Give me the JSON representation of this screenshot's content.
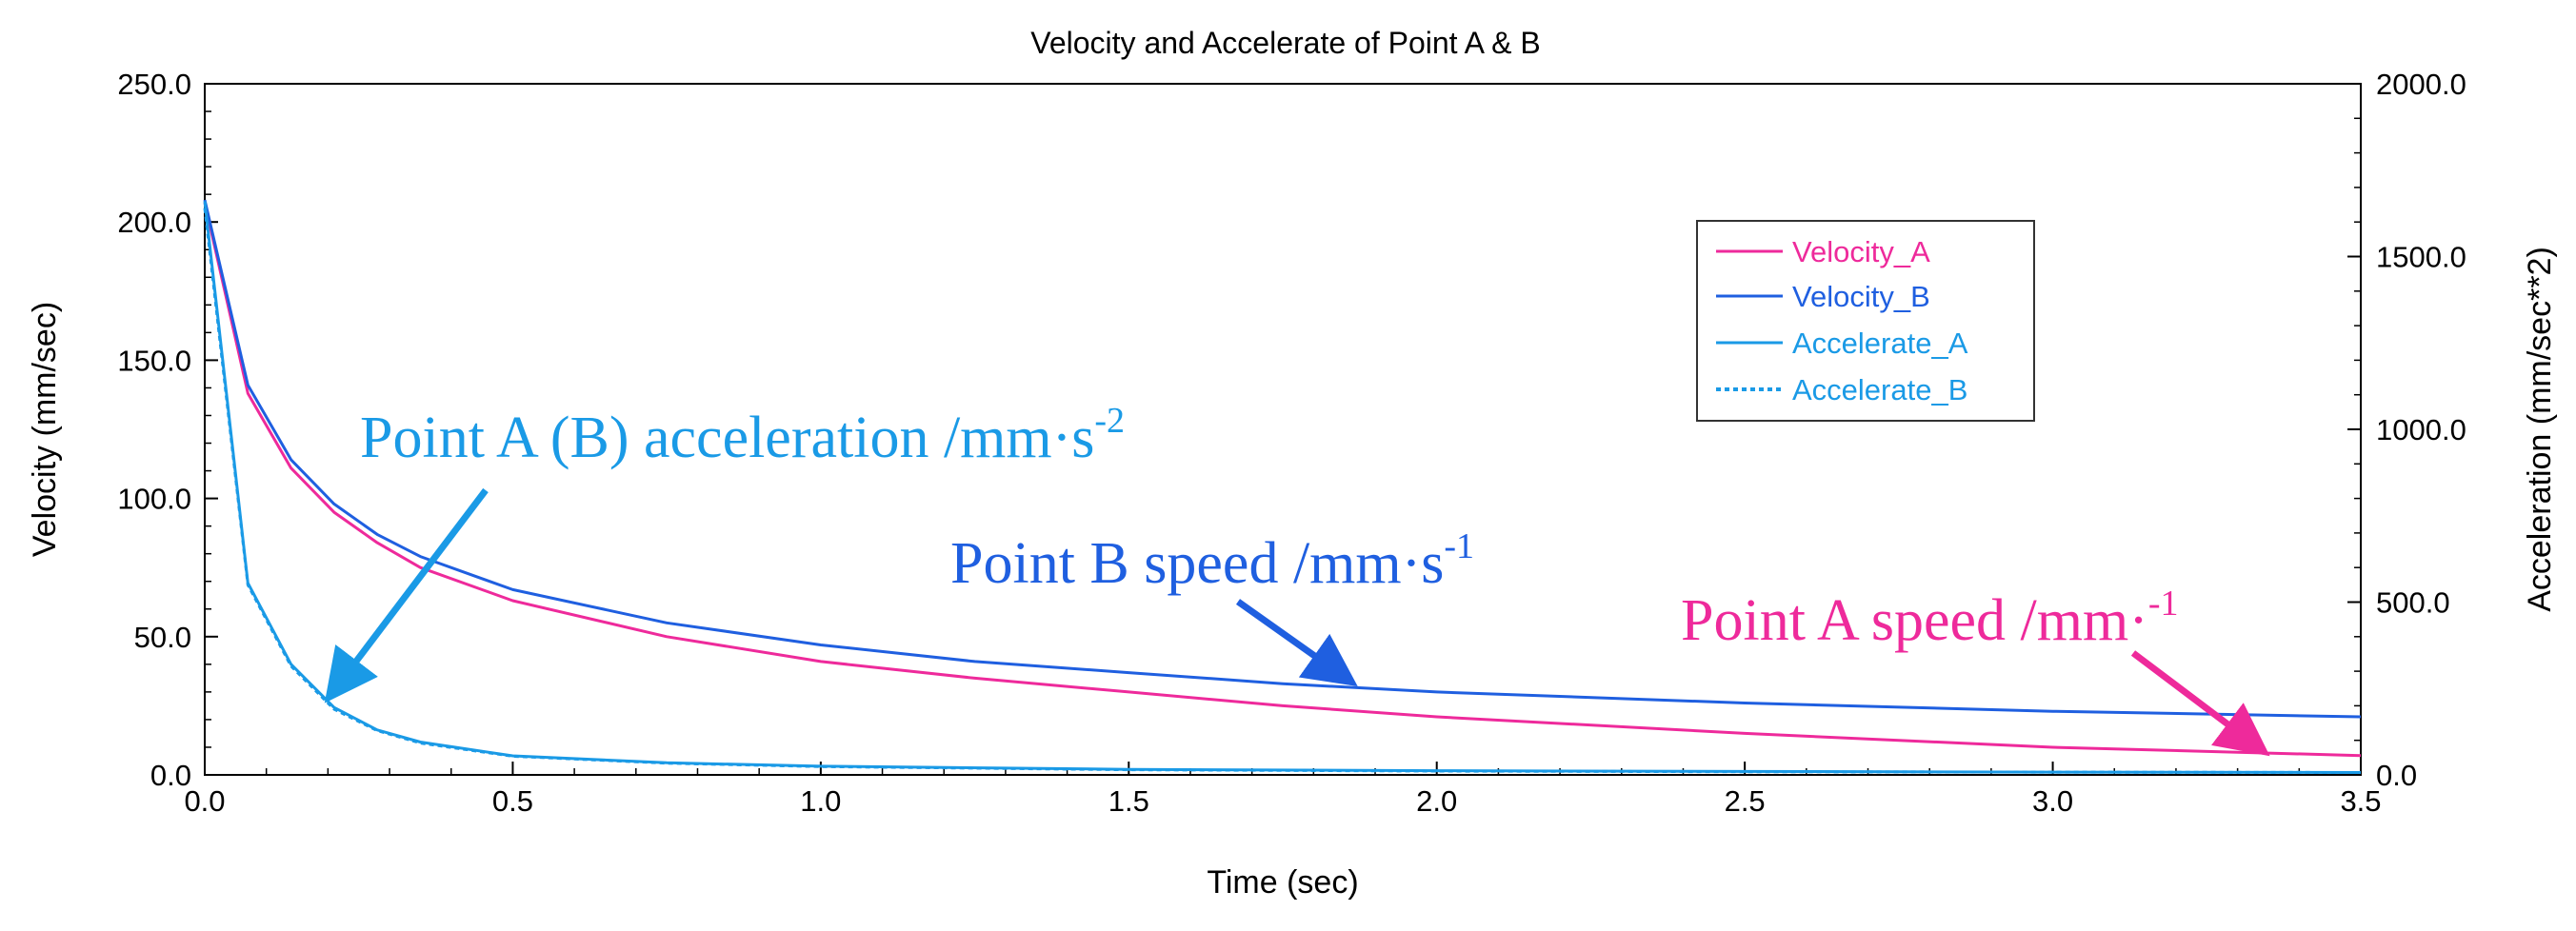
{
  "chart_data": {
    "type": "line",
    "title": "Velocity and Accelerate of Point A & B",
    "xlabel": "Time (sec)",
    "ylabel": "Velocity (mm/sec)",
    "y2label": "Acceleration (mm/sec**2)",
    "xlim": [
      0,
      3.5
    ],
    "ylim": [
      0,
      250
    ],
    "y2lim": [
      0,
      2000
    ],
    "xticks": [
      "0.0",
      "0.5",
      "1.0",
      "1.5",
      "2.0",
      "2.5",
      "3.0",
      "3.5"
    ],
    "yticks": [
      "0.0",
      "50.0",
      "100.0",
      "150.0",
      "200.0",
      "250.0"
    ],
    "y2ticks": [
      "0.0",
      "500.0",
      "1000.0",
      "1500.0",
      "2000.0"
    ],
    "grid": false,
    "legend": {
      "position": "top-right"
    },
    "series": [
      {
        "name": "Velocity_A",
        "axis": "left",
        "color": "#ee2a9b",
        "dash": "solid",
        "x": [
          0,
          0.07,
          0.14,
          0.21,
          0.28,
          0.35,
          0.5,
          0.75,
          1.0,
          1.25,
          1.5,
          1.75,
          2.0,
          2.5,
          3.0,
          3.5
        ],
        "y": [
          207,
          138,
          111,
          95,
          84,
          75,
          63,
          50,
          41,
          35,
          30,
          25,
          21,
          15,
          10,
          7
        ]
      },
      {
        "name": "Velocity_B",
        "axis": "left",
        "color": "#1f5fe0",
        "dash": "solid",
        "x": [
          0,
          0.07,
          0.14,
          0.21,
          0.28,
          0.35,
          0.5,
          0.75,
          1.0,
          1.25,
          1.5,
          1.75,
          2.0,
          2.5,
          3.0,
          3.5
        ],
        "y": [
          208,
          141,
          114,
          98,
          87,
          79,
          67,
          55,
          47,
          41,
          37,
          33,
          30,
          26,
          23,
          21
        ]
      },
      {
        "name": "Accelerate_A",
        "axis": "right",
        "color": "#1a9ae6",
        "dash": "solid",
        "x": [
          0,
          0.07,
          0.14,
          0.21,
          0.28,
          0.35,
          0.5,
          0.75,
          1.0,
          1.5,
          2.0,
          2.5,
          3.0,
          3.5
        ],
        "y": [
          1660,
          555,
          320,
          195,
          130,
          95,
          55,
          35,
          25,
          16,
          12,
          10,
          8,
          7
        ]
      },
      {
        "name": "Accelerate_B",
        "axis": "right",
        "color": "#1a9ae6",
        "dash": "dotted",
        "x": [
          0,
          0.07,
          0.14,
          0.21,
          0.28,
          0.35,
          0.5,
          0.75,
          1.0,
          1.5,
          2.0,
          2.5,
          3.0,
          3.5
        ],
        "y": [
          1640,
          550,
          315,
          190,
          128,
          92,
          54,
          34,
          24,
          15,
          11,
          9,
          8,
          7
        ]
      }
    ],
    "annotations": [
      {
        "text": "Point A (B) acceleration /mm·s",
        "sup": "-2",
        "color": "#1a9ae6",
        "arrow_to": [
          0.2,
          230
        ]
      },
      {
        "text": "Point B speed /mm·s",
        "sup": "-1",
        "color": "#1f5fe0",
        "arrow_to": [
          1.9,
          31
        ]
      },
      {
        "text": "Point A speed /mm·",
        "sup": "-1",
        "color": "#ee2a9b",
        "arrow_to": [
          3.37,
          8
        ]
      }
    ]
  }
}
